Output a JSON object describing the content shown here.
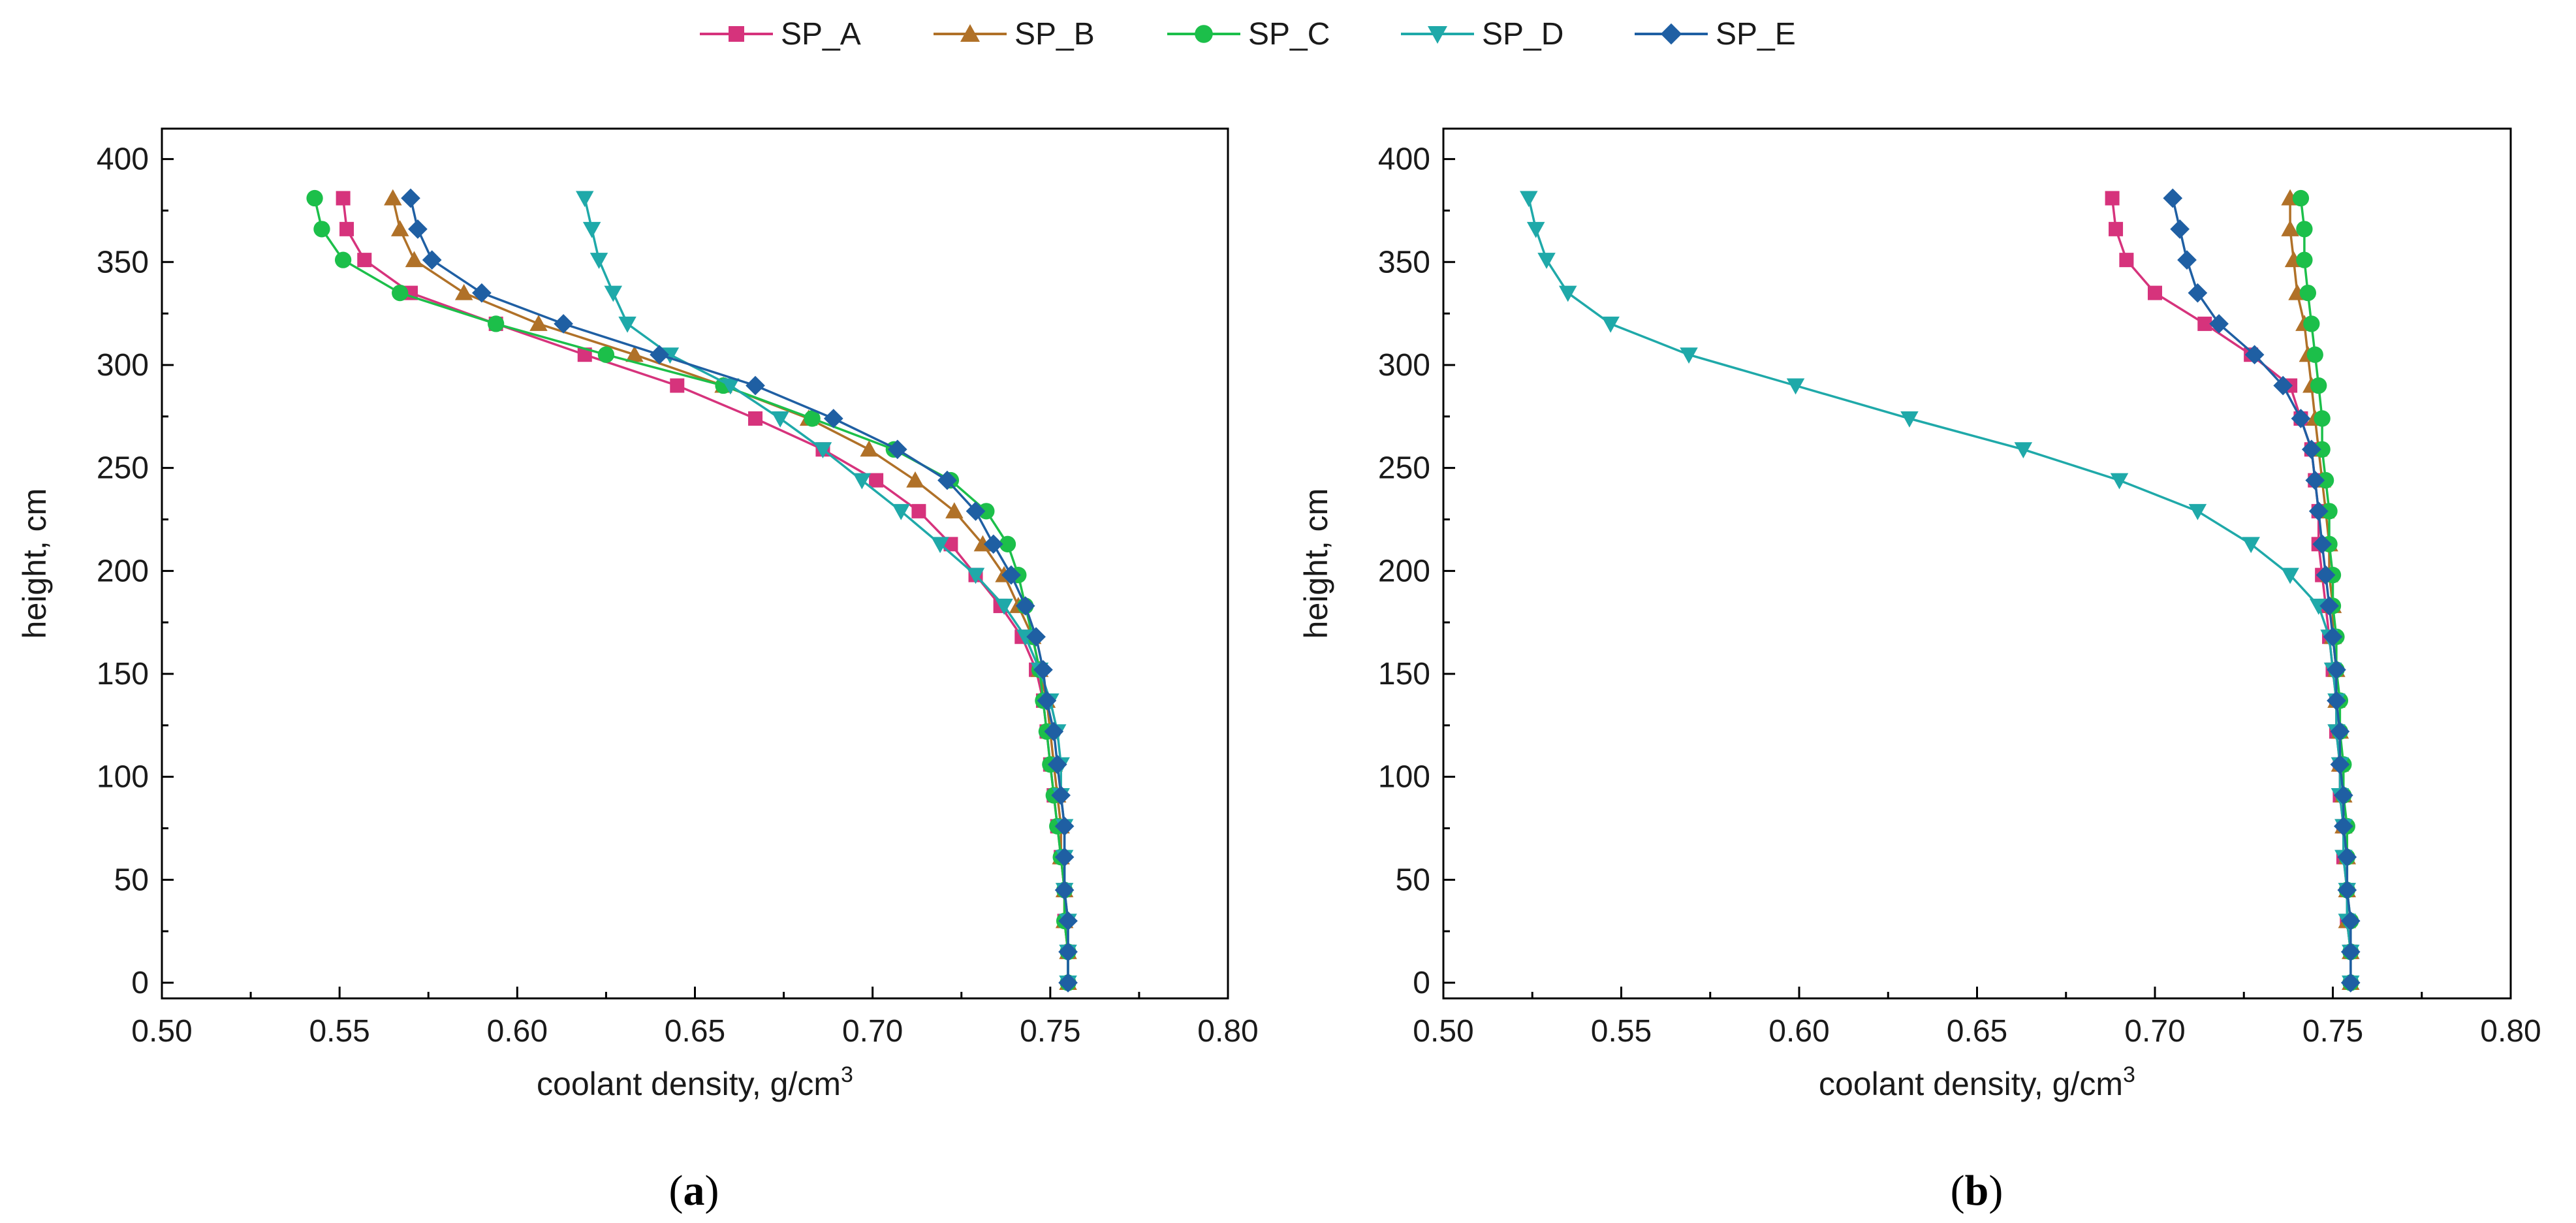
{
  "legend": {
    "placement": "top-center",
    "entries": [
      {
        "name": "SP_A",
        "color": "#d6337c",
        "marker": "square"
      },
      {
        "name": "SP_B",
        "color": "#b07128",
        "marker": "triangle-up"
      },
      {
        "name": "SP_C",
        "color": "#1cbf4a",
        "marker": "circle"
      },
      {
        "name": "SP_D",
        "color": "#1fa9a9",
        "marker": "triangle-down"
      },
      {
        "name": "SP_E",
        "color": "#1f5fa3",
        "marker": "diamond"
      }
    ]
  },
  "chart_data": [
    {
      "type": "line",
      "panel_label": "a",
      "xlabel": "coolant density, g/cm",
      "xlabel_sup": "3",
      "ylabel": "height, cm",
      "xlim": [
        0.5,
        0.8
      ],
      "ylim": [
        0,
        400
      ],
      "xticks": [
        "0.50",
        "0.55",
        "0.60",
        "0.65",
        "0.70",
        "0.75",
        "0.80"
      ],
      "yticks": [
        "0",
        "50",
        "100",
        "150",
        "200",
        "250",
        "300",
        "350",
        "400"
      ],
      "y": [
        0,
        15,
        30,
        45,
        61,
        76,
        91,
        106,
        122,
        137,
        152,
        168,
        183,
        198,
        213,
        229,
        244,
        259,
        274,
        290,
        305,
        320,
        335,
        351,
        366,
        381
      ],
      "series": [
        {
          "name": "SP_A",
          "values": [
            0.755,
            0.755,
            0.754,
            0.754,
            0.753,
            0.752,
            0.751,
            0.75,
            0.749,
            0.748,
            0.746,
            0.742,
            0.736,
            0.729,
            0.722,
            0.713,
            0.701,
            0.686,
            0.667,
            0.645,
            0.619,
            0.594,
            0.57,
            0.557,
            0.552,
            0.551
          ]
        },
        {
          "name": "SP_B",
          "values": [
            0.755,
            0.755,
            0.754,
            0.754,
            0.753,
            0.753,
            0.752,
            0.751,
            0.75,
            0.749,
            0.747,
            0.745,
            0.741,
            0.737,
            0.731,
            0.723,
            0.712,
            0.699,
            0.682,
            0.658,
            0.633,
            0.606,
            0.585,
            0.571,
            0.567,
            0.565
          ]
        },
        {
          "name": "SP_C",
          "values": [
            0.755,
            0.755,
            0.754,
            0.754,
            0.753,
            0.752,
            0.751,
            0.75,
            0.749,
            0.748,
            0.747,
            0.745,
            0.743,
            0.741,
            0.738,
            0.732,
            0.722,
            0.706,
            0.683,
            0.658,
            0.625,
            0.594,
            0.567,
            0.551,
            0.545,
            0.543
          ]
        },
        {
          "name": "SP_D",
          "values": [
            0.755,
            0.755,
            0.755,
            0.754,
            0.754,
            0.754,
            0.753,
            0.753,
            0.752,
            0.75,
            0.747,
            0.743,
            0.737,
            0.729,
            0.719,
            0.708,
            0.697,
            0.686,
            0.674,
            0.66,
            0.643,
            0.631,
            0.627,
            0.623,
            0.621,
            0.619
          ]
        },
        {
          "name": "SP_E",
          "values": [
            0.755,
            0.755,
            0.755,
            0.754,
            0.754,
            0.754,
            0.753,
            0.752,
            0.751,
            0.749,
            0.748,
            0.746,
            0.743,
            0.739,
            0.734,
            0.729,
            0.721,
            0.707,
            0.689,
            0.667,
            0.64,
            0.613,
            0.59,
            0.576,
            0.572,
            0.57
          ]
        }
      ]
    },
    {
      "type": "line",
      "panel_label": "b",
      "xlabel": "coolant density, g/cm",
      "xlabel_sup": "3",
      "ylabel": "height, cm",
      "xlim": [
        0.5,
        0.8
      ],
      "ylim": [
        0,
        400
      ],
      "xticks": [
        "0.50",
        "0.55",
        "0.60",
        "0.65",
        "0.70",
        "0.75",
        "0.80"
      ],
      "yticks": [
        "0",
        "50",
        "100",
        "150",
        "200",
        "250",
        "300",
        "350",
        "400"
      ],
      "y": [
        0,
        15,
        30,
        45,
        61,
        76,
        91,
        106,
        122,
        137,
        152,
        168,
        183,
        198,
        213,
        229,
        244,
        259,
        274,
        290,
        305,
        320,
        335,
        351,
        366,
        381
      ],
      "series": [
        {
          "name": "SP_A",
          "values": [
            0.755,
            0.755,
            0.754,
            0.754,
            0.753,
            0.753,
            0.752,
            0.752,
            0.751,
            0.751,
            0.75,
            0.749,
            0.748,
            0.747,
            0.746,
            0.746,
            0.745,
            0.744,
            0.741,
            0.738,
            0.727,
            0.714,
            0.7,
            0.692,
            0.689,
            0.688
          ]
        },
        {
          "name": "SP_B",
          "values": [
            0.755,
            0.755,
            0.754,
            0.754,
            0.754,
            0.753,
            0.753,
            0.752,
            0.752,
            0.751,
            0.751,
            0.75,
            0.75,
            0.749,
            0.749,
            0.748,
            0.747,
            0.746,
            0.745,
            0.744,
            0.743,
            0.742,
            0.74,
            0.739,
            0.738,
            0.738
          ]
        },
        {
          "name": "SP_C",
          "values": [
            0.755,
            0.755,
            0.755,
            0.754,
            0.754,
            0.754,
            0.753,
            0.753,
            0.752,
            0.752,
            0.751,
            0.751,
            0.75,
            0.75,
            0.749,
            0.749,
            0.748,
            0.747,
            0.747,
            0.746,
            0.745,
            0.744,
            0.743,
            0.742,
            0.742,
            0.741
          ]
        },
        {
          "name": "SP_D",
          "values": [
            0.755,
            0.755,
            0.754,
            0.754,
            0.753,
            0.753,
            0.752,
            0.752,
            0.751,
            0.751,
            0.75,
            0.749,
            0.746,
            0.738,
            0.727,
            0.712,
            0.69,
            0.663,
            0.631,
            0.599,
            0.569,
            0.547,
            0.535,
            0.529,
            0.526,
            0.524
          ]
        },
        {
          "name": "SP_E",
          "values": [
            0.755,
            0.755,
            0.755,
            0.754,
            0.754,
            0.753,
            0.753,
            0.752,
            0.752,
            0.751,
            0.751,
            0.75,
            0.749,
            0.748,
            0.747,
            0.746,
            0.745,
            0.744,
            0.741,
            0.736,
            0.728,
            0.718,
            0.712,
            0.709,
            0.707,
            0.705
          ]
        }
      ]
    }
  ]
}
